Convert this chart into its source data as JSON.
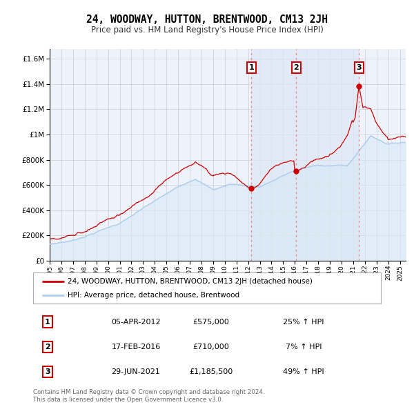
{
  "title": "24, WOODWAY, HUTTON, BRENTWOOD, CM13 2JH",
  "subtitle": "Price paid vs. HM Land Registry's House Price Index (HPI)",
  "ytick_labels": [
    "£0",
    "£200K",
    "£400K",
    "£600K",
    "£800K",
    "£1M",
    "£1.2M",
    "£1.4M",
    "£1.6M"
  ],
  "ytick_values": [
    0,
    200000,
    400000,
    600000,
    800000,
    1000000,
    1200000,
    1400000,
    1600000
  ],
  "ylim": [
    0,
    1680000
  ],
  "xlim_start": 1995.0,
  "xlim_end": 2025.5,
  "transactions": [
    {
      "label": "1",
      "date": "05-APR-2012",
      "year": 2012.27,
      "price": 575000,
      "pct": "25%",
      "dir": "↑"
    },
    {
      "label": "2",
      "date": "17-FEB-2016",
      "year": 2016.13,
      "price": 710000,
      "pct": "7%",
      "dir": "↑"
    },
    {
      "label": "3",
      "date": "29-JUN-2021",
      "year": 2021.49,
      "price": 1185500,
      "pct": "49%",
      "dir": "↑"
    }
  ],
  "legend_line1": "24, WOODWAY, HUTTON, BRENTWOOD, CM13 2JH (detached house)",
  "legend_line2": "HPI: Average price, detached house, Brentwood",
  "footer_line1": "Contains HM Land Registry data © Crown copyright and database right 2024.",
  "footer_line2": "This data is licensed under the Open Government Licence v3.0.",
  "red_color": "#cc0000",
  "blue_color": "#aaccee",
  "blue_fill_color": "#d8e8f5",
  "background_color": "#eef2fb",
  "grid_color": "#cccccc",
  "shade_color": "#dce8f5",
  "table_rows": [
    [
      "1",
      "05-APR-2012",
      "£575,000",
      "25% ↑ HPI"
    ],
    [
      "2",
      "17-FEB-2016",
      "£710,000",
      "7% ↑ HPI"
    ],
    [
      "3",
      "29-JUN-2021",
      "£1,185,500",
      "49% ↑ HPI"
    ]
  ]
}
